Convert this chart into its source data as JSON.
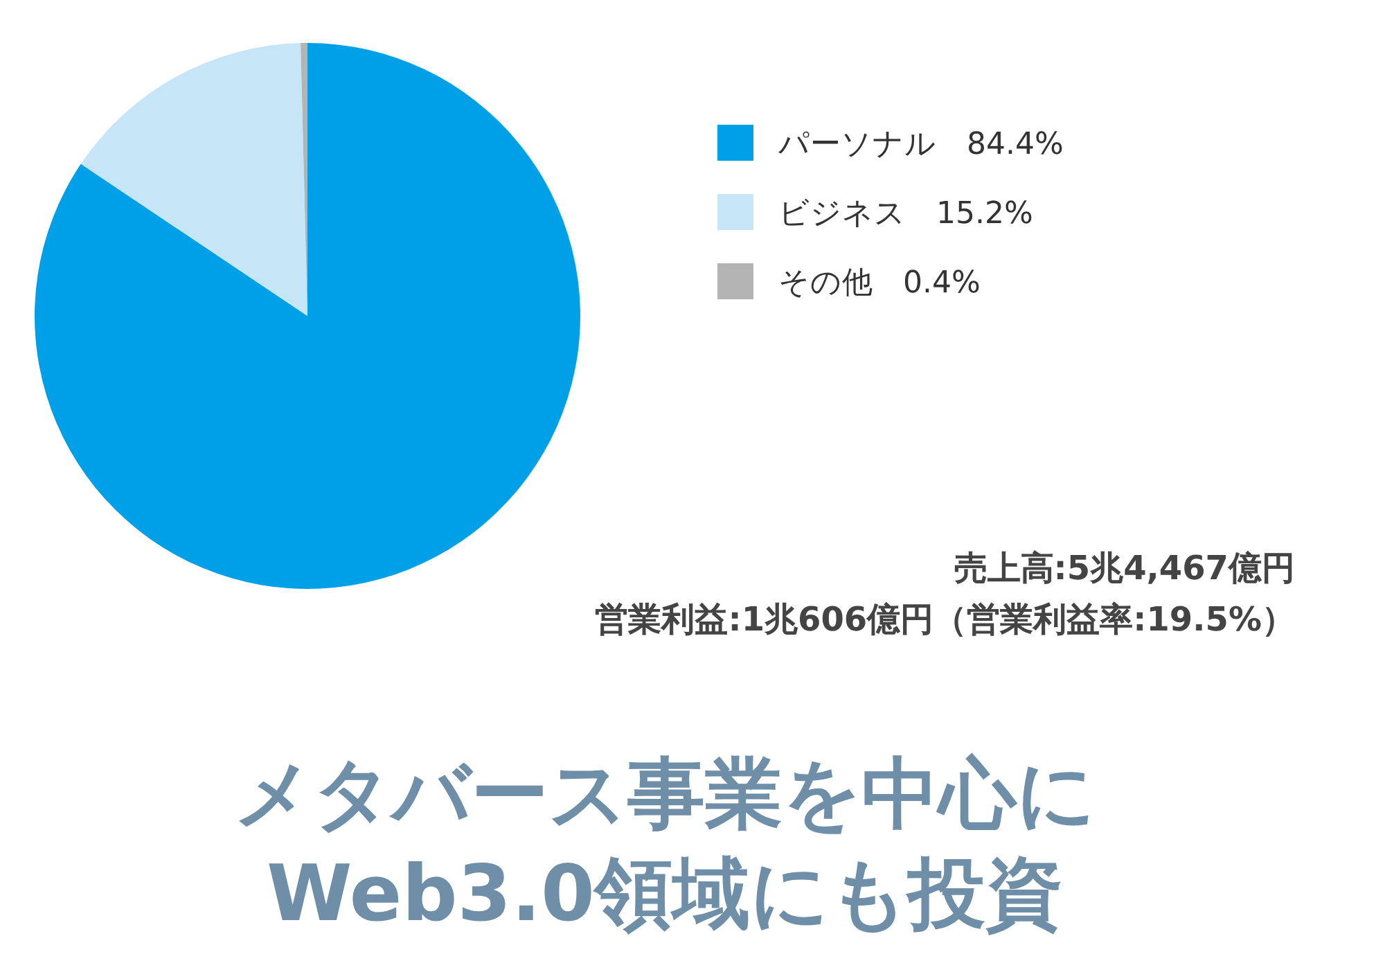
{
  "chart_data": {
    "type": "pie",
    "title": "メタバース事業を中心に\nWeb3.0領域にも投資",
    "categories": [
      "パーソナル",
      "ビジネス",
      "その他"
    ],
    "values": [
      84.4,
      15.2,
      0.4
    ],
    "value_labels": [
      "84.4%",
      "15.2%",
      "0.4%"
    ],
    "colors": [
      "#00a0e9",
      "#c6e6f8",
      "#b4b4b4"
    ],
    "legend": "top right",
    "annotations": [
      "売上高:5兆4,467億円",
      "営業利益:1兆606億円（営業利益率:19.5%）"
    ]
  }
}
